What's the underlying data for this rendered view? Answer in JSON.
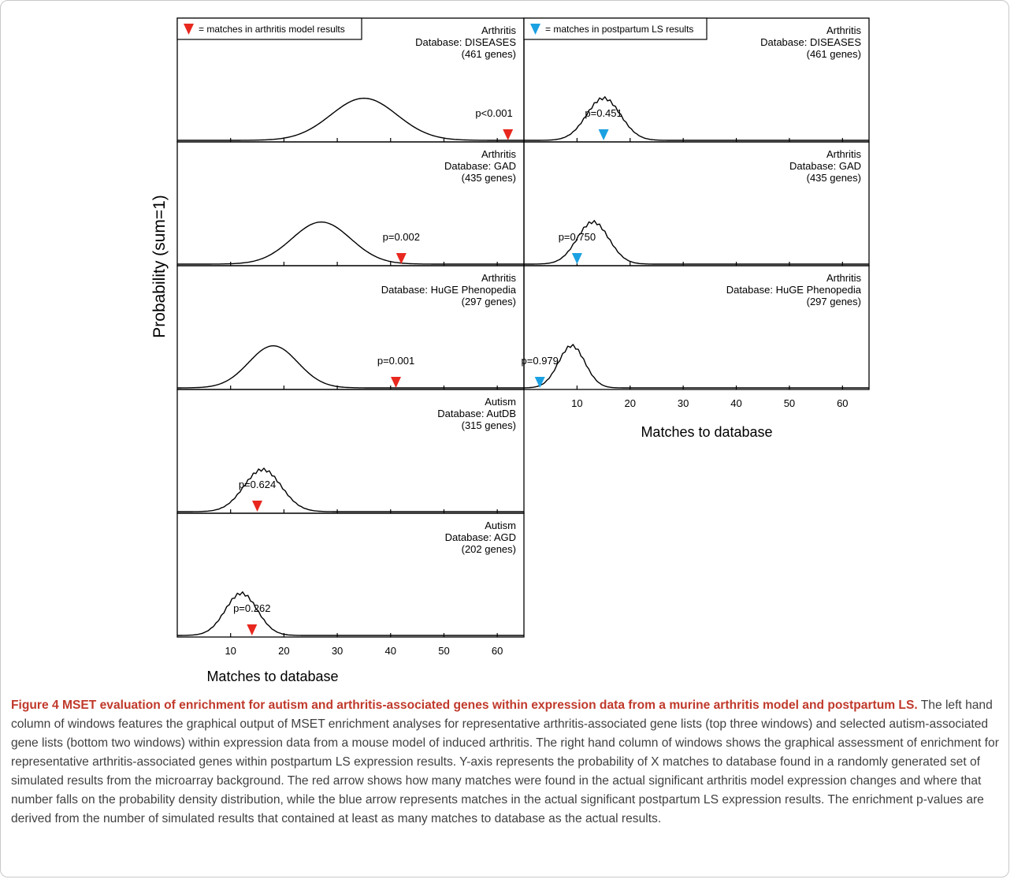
{
  "figure": {
    "ylabel": "Probability (sum=1)",
    "xlabel": "Matches to database",
    "xticks": [
      10,
      20,
      30,
      40,
      50,
      60
    ],
    "xlim": [
      0,
      65
    ],
    "legend_left": "= matches in arthritis model results",
    "legend_right": "= matches in postpartum LS results",
    "colors": {
      "red_marker": "#e8281e",
      "blue_marker": "#1ba1e2",
      "curve": "#000000"
    }
  },
  "chart_data": [
    {
      "type": "line",
      "column": "left",
      "disease": "Arthritis",
      "database": "Database: DISEASES",
      "genes": "(461 genes)",
      "p_label": "p<0.001",
      "observed_matches": 62,
      "marker_color": "red",
      "peak_x": 35,
      "sd": 6.2
    },
    {
      "type": "line",
      "column": "left",
      "disease": "Arthritis",
      "database": "Database: GAD",
      "genes": "(435 genes)",
      "p_label": "p=0.002",
      "observed_matches": 42,
      "marker_color": "red",
      "peak_x": 27,
      "sd": 5.5
    },
    {
      "type": "line",
      "column": "left",
      "disease": "Arthritis",
      "database": "Database: HuGE Phenopedia",
      "genes": "(297 genes)",
      "p_label": "p=0.001",
      "observed_matches": 41,
      "marker_color": "red",
      "peak_x": 18,
      "sd": 4.6
    },
    {
      "type": "line",
      "column": "left",
      "disease": "Autism",
      "database": "Database: AutDB",
      "genes": "(315 genes)",
      "p_label": "p=0.624",
      "observed_matches": 15,
      "marker_color": "red",
      "peak_x": 16,
      "sd": 3.5
    },
    {
      "type": "line",
      "column": "left",
      "disease": "Autism",
      "database": "Database: AGD",
      "genes": "(202 genes)",
      "p_label": "p=0.262",
      "observed_matches": 14,
      "marker_color": "red",
      "peak_x": 12,
      "sd": 3.0
    },
    {
      "type": "line",
      "column": "right",
      "disease": "Arthritis",
      "database": "Database: DISEASES",
      "genes": "(461 genes)",
      "p_label": "p=0.451",
      "observed_matches": 15,
      "marker_color": "blue",
      "peak_x": 15,
      "sd": 3.2
    },
    {
      "type": "line",
      "column": "right",
      "disease": "Arthritis",
      "database": "Database: GAD",
      "genes": "(435 genes)",
      "p_label": "p=0.750",
      "observed_matches": 10,
      "marker_color": "blue",
      "peak_x": 13,
      "sd": 3.0
    },
    {
      "type": "line",
      "column": "right",
      "disease": "Arthritis",
      "database": "Database: HuGE Phenopedia",
      "genes": "(297 genes)",
      "p_label": "p=0.979",
      "observed_matches": 3,
      "marker_color": "blue",
      "peak_x": 9,
      "sd": 2.5
    }
  ],
  "caption": {
    "title": "Figure 4 MSET evaluation of enrichment for autism and arthritis-associated genes within expression data from a murine arthritis model and postpartum LS.",
    "body": " The left hand column of windows features the graphical output of MSET enrichment analyses for representative arthritis-associated gene lists (top three windows) and selected autism-associated gene lists (bottom two windows) within expression data from a mouse model of induced arthritis. The right hand column of windows shows the graphical assessment of enrichment for representative arthritis-associated genes within postpartum LS expression results. Y-axis represents the probability of X matches to database found in a randomly generated set of simulated results from the microarray background. The red arrow shows how many matches were found in the actual significant arthritis model expression changes and where that number falls on the probability density distribution, while the blue arrow represents matches in the actual significant postpartum LS expression results. The enrichment p-values are derived from the number of simulated results that contained at least as many matches to database as the actual results."
  }
}
